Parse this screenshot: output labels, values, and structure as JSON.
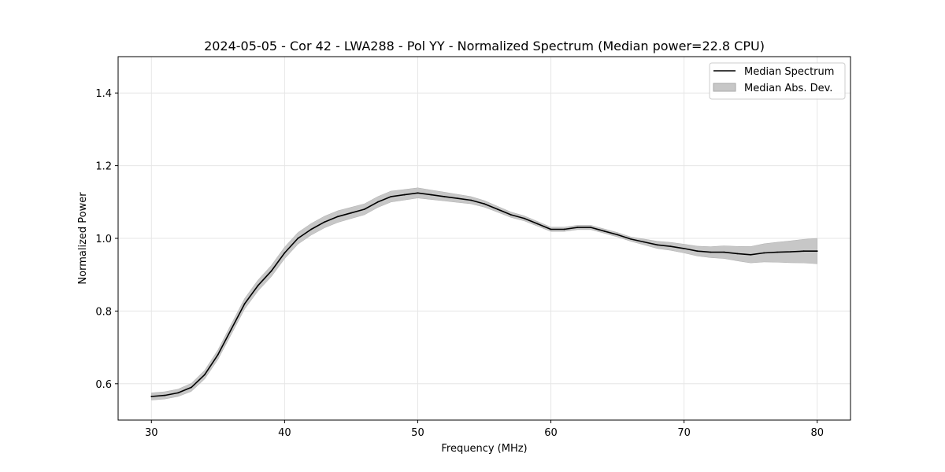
{
  "chart_data": {
    "type": "line",
    "title": "2024-05-05 - Cor 42 - LWA288 - Pol YY - Normalized Spectrum (Median power=22.8 CPU)",
    "xlabel": "Frequency (MHz)",
    "ylabel": "Normalized Power",
    "xlim": [
      27.5,
      82.5
    ],
    "ylim": [
      0.5,
      1.5
    ],
    "xticks": [
      30,
      40,
      50,
      60,
      70,
      80
    ],
    "xtick_labels": [
      "30",
      "40",
      "50",
      "60",
      "70",
      "80"
    ],
    "yticks": [
      0.6,
      0.8,
      1.0,
      1.2,
      1.4
    ],
    "ytick_labels": [
      "0.6",
      "0.8",
      "1.0",
      "1.2",
      "1.4"
    ],
    "grid": true,
    "legend_position": "top-right",
    "series": [
      {
        "name": "Median Spectrum",
        "kind": "line",
        "color": "#000000",
        "x": [
          30,
          31,
          32,
          33,
          34,
          35,
          36,
          37,
          38,
          39,
          40,
          41,
          42,
          43,
          44,
          45,
          46,
          47,
          48,
          49,
          50,
          51,
          52,
          53,
          54,
          55,
          56,
          57,
          58,
          59,
          60,
          61,
          62,
          63,
          64,
          65,
          66,
          67,
          68,
          69,
          70,
          71,
          72,
          73,
          74,
          75,
          76,
          77,
          78,
          79,
          80
        ],
        "values": [
          0.565,
          0.568,
          0.575,
          0.59,
          0.625,
          0.68,
          0.75,
          0.82,
          0.87,
          0.91,
          0.96,
          1.0,
          1.025,
          1.045,
          1.06,
          1.07,
          1.08,
          1.1,
          1.115,
          1.12,
          1.125,
          1.12,
          1.115,
          1.11,
          1.105,
          1.095,
          1.08,
          1.065,
          1.055,
          1.04,
          1.025,
          1.025,
          1.03,
          1.03,
          1.02,
          1.01,
          0.998,
          0.99,
          0.982,
          0.978,
          0.972,
          0.965,
          0.962,
          0.962,
          0.958,
          0.955,
          0.96,
          0.962,
          0.963,
          0.965,
          0.965
        ]
      },
      {
        "name": "Median Abs. Dev.",
        "kind": "band",
        "color": "#c7c7c7",
        "x": [
          30,
          32,
          34,
          36,
          38,
          40,
          42,
          44,
          46,
          48,
          50,
          52,
          54,
          56,
          58,
          60,
          62,
          64,
          66,
          68,
          70,
          72,
          74,
          76,
          78,
          80
        ],
        "deviation": [
          0.01,
          0.01,
          0.012,
          0.014,
          0.015,
          0.016,
          0.016,
          0.016,
          0.015,
          0.015,
          0.014,
          0.012,
          0.01,
          0.008,
          0.007,
          0.006,
          0.006,
          0.006,
          0.006,
          0.01,
          0.012,
          0.015,
          0.02,
          0.025,
          0.03,
          0.035
        ]
      }
    ]
  }
}
